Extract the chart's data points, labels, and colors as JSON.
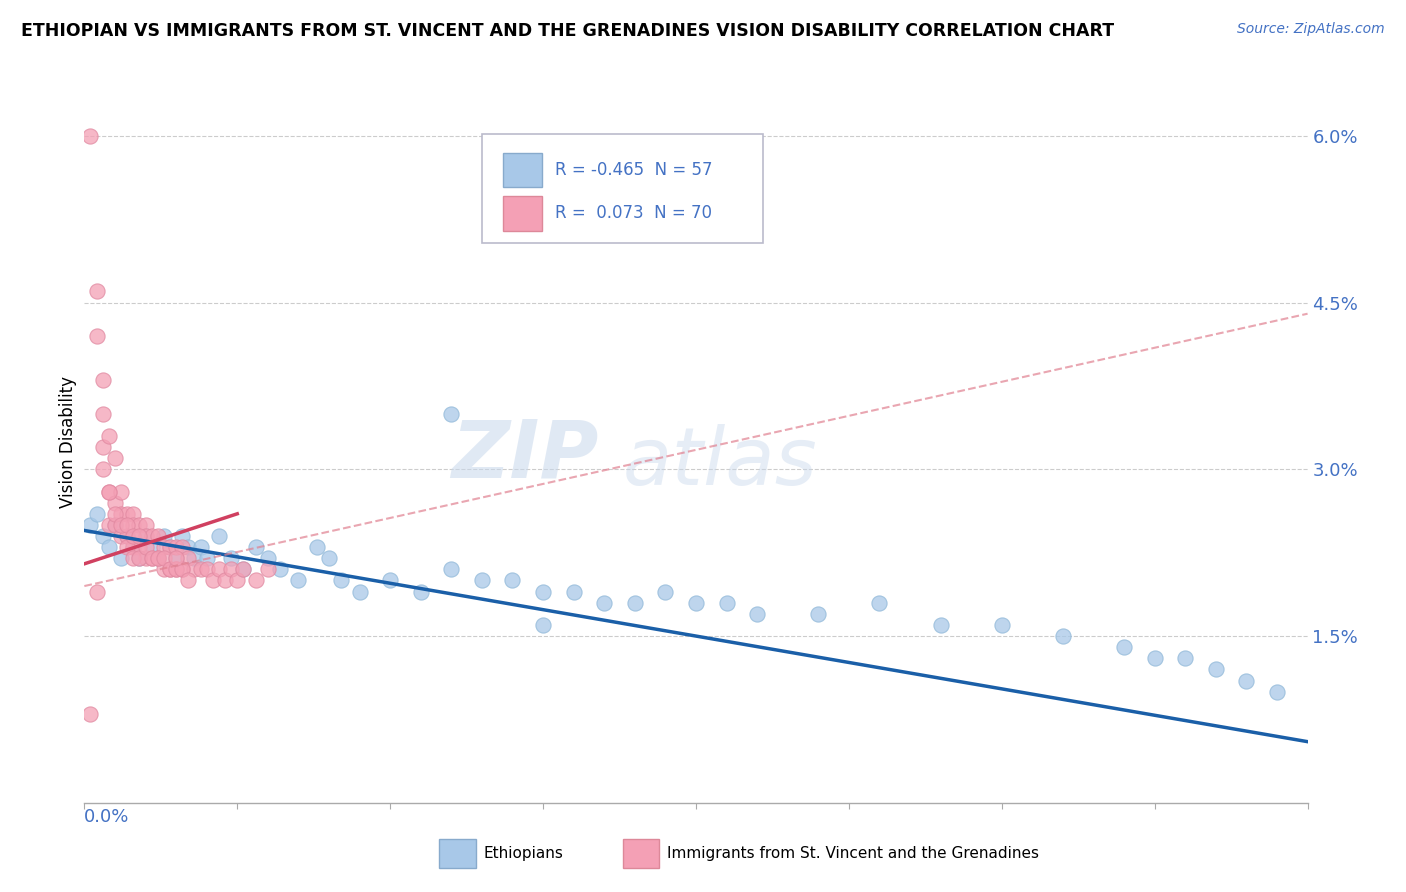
{
  "title": "ETHIOPIAN VS IMMIGRANTS FROM ST. VINCENT AND THE GRENADINES VISION DISABILITY CORRELATION CHART",
  "source": "Source: ZipAtlas.com",
  "ylabel_label": "Vision Disability",
  "yticks": [
    0.0,
    0.015,
    0.03,
    0.045,
    0.06
  ],
  "ytick_labels": [
    "",
    "1.5%",
    "3.0%",
    "4.5%",
    "6.0%"
  ],
  "xlim": [
    0.0,
    0.2
  ],
  "ylim": [
    0.0,
    0.065
  ],
  "blue_color": "#a8c8e8",
  "pink_color": "#f4a0b5",
  "trend_blue": "#1a5fa8",
  "trend_pink": "#d04060",
  "trend_pink_dash": "#e08090",
  "watermark_zip": "ZIP",
  "watermark_atlas": "atlas",
  "ethiopians_x": [
    0.001,
    0.002,
    0.003,
    0.004,
    0.005,
    0.006,
    0.007,
    0.008,
    0.009,
    0.01,
    0.011,
    0.012,
    0.013,
    0.014,
    0.015,
    0.016,
    0.017,
    0.018,
    0.019,
    0.02,
    0.022,
    0.024,
    0.026,
    0.028,
    0.03,
    0.032,
    0.035,
    0.038,
    0.04,
    0.042,
    0.045,
    0.05,
    0.055,
    0.06,
    0.065,
    0.07,
    0.075,
    0.08,
    0.085,
    0.09,
    0.095,
    0.1,
    0.105,
    0.11,
    0.12,
    0.13,
    0.14,
    0.15,
    0.16,
    0.17,
    0.175,
    0.18,
    0.185,
    0.19,
    0.195,
    0.06,
    0.075
  ],
  "ethiopians_y": [
    0.025,
    0.026,
    0.024,
    0.023,
    0.025,
    0.022,
    0.024,
    0.023,
    0.022,
    0.024,
    0.023,
    0.022,
    0.024,
    0.023,
    0.022,
    0.024,
    0.023,
    0.022,
    0.023,
    0.022,
    0.024,
    0.022,
    0.021,
    0.023,
    0.022,
    0.021,
    0.02,
    0.023,
    0.022,
    0.02,
    0.019,
    0.02,
    0.019,
    0.021,
    0.02,
    0.02,
    0.019,
    0.019,
    0.018,
    0.018,
    0.019,
    0.018,
    0.018,
    0.017,
    0.017,
    0.018,
    0.016,
    0.016,
    0.015,
    0.014,
    0.013,
    0.013,
    0.012,
    0.011,
    0.01,
    0.035,
    0.016
  ],
  "svg_x": [
    0.001,
    0.002,
    0.002,
    0.003,
    0.003,
    0.004,
    0.004,
    0.005,
    0.005,
    0.006,
    0.006,
    0.006,
    0.007,
    0.007,
    0.008,
    0.008,
    0.008,
    0.009,
    0.009,
    0.01,
    0.01,
    0.01,
    0.011,
    0.011,
    0.012,
    0.012,
    0.013,
    0.013,
    0.014,
    0.014,
    0.015,
    0.015,
    0.016,
    0.016,
    0.017,
    0.018,
    0.019,
    0.02,
    0.021,
    0.022,
    0.023,
    0.024,
    0.025,
    0.026,
    0.028,
    0.03,
    0.003,
    0.004,
    0.005,
    0.006,
    0.007,
    0.007,
    0.008,
    0.008,
    0.009,
    0.009,
    0.01,
    0.011,
    0.012,
    0.013,
    0.014,
    0.015,
    0.016,
    0.017,
    0.003,
    0.004,
    0.005,
    0.001,
    0.015,
    0.002
  ],
  "svg_y": [
    0.06,
    0.046,
    0.042,
    0.038,
    0.032,
    0.028,
    0.025,
    0.027,
    0.025,
    0.028,
    0.026,
    0.024,
    0.026,
    0.024,
    0.026,
    0.025,
    0.023,
    0.025,
    0.023,
    0.025,
    0.024,
    0.022,
    0.024,
    0.022,
    0.024,
    0.022,
    0.023,
    0.021,
    0.023,
    0.021,
    0.023,
    0.021,
    0.023,
    0.021,
    0.022,
    0.021,
    0.021,
    0.021,
    0.02,
    0.021,
    0.02,
    0.021,
    0.02,
    0.021,
    0.02,
    0.021,
    0.03,
    0.028,
    0.026,
    0.025,
    0.025,
    0.023,
    0.024,
    0.022,
    0.024,
    0.022,
    0.023,
    0.022,
    0.022,
    0.022,
    0.021,
    0.021,
    0.021,
    0.02,
    0.035,
    0.033,
    0.031,
    0.008,
    0.022,
    0.019
  ]
}
